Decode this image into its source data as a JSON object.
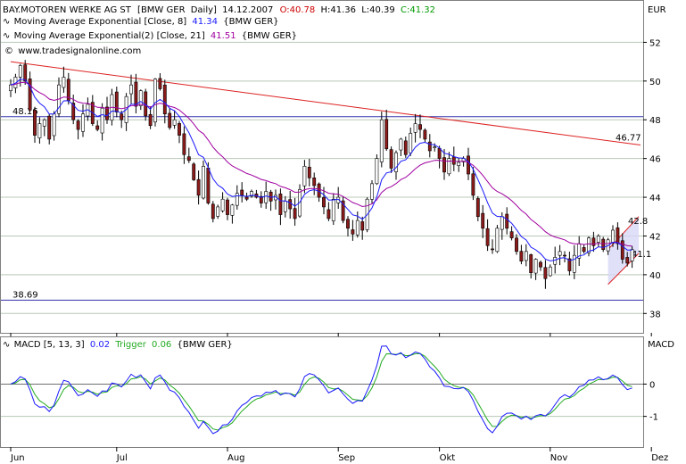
{
  "header": {
    "symbol": "BAY.MOTOREN WERKE AG ST",
    "exchange": "[BMW GER",
    "period": "Daily]",
    "date": "14.12.2007",
    "open_label": "O:",
    "open": "40.78",
    "high_label": "H:",
    "high": "41.36",
    "low_label": "L:",
    "low": "40.39",
    "close_label": "C:",
    "close": "41.32"
  },
  "legend": {
    "ema1_label": "Moving Average Exponential [Close, 8]",
    "ema1_value": "41.34",
    "ema1_source": "{BMW GER}",
    "ema2_label": "Moving Average Exponential(2) [Close, 21]",
    "ema2_value": "41.51",
    "ema2_source": "{BMW GER}",
    "watermark": "www.tradesignalonline.com"
  },
  "macd_legend": {
    "label": "MACD [5, 13, 3]",
    "value": "0.02",
    "trigger_label": "Trigger",
    "trigger_value": "0.06",
    "source": "{BMW GER}"
  },
  "colors": {
    "up_candle": "#ffffff",
    "down_candle": "#8b1a1a",
    "ema8": "#1a1aff",
    "ema21": "#a000a0",
    "trendline": "#dd2222",
    "channel_fill": "#d8d8f8",
    "hline": "#3333aa",
    "macd": "#1a1aff",
    "trigger": "#22aa22",
    "header_red": "#cc0000",
    "header_green": "#009900",
    "background": "#ffffff"
  },
  "chart_data": [
    {
      "type": "candlestick",
      "currency_label": "EUR",
      "ylim": [
        37,
        54
      ],
      "y_ticks": [
        38,
        40,
        42,
        44,
        46,
        48,
        50,
        52
      ],
      "x_labels": [
        "Jun",
        "Jul",
        "Aug",
        "Sep",
        "Okt",
        "Nov",
        "Dez"
      ],
      "x_label_index": [
        0,
        22,
        45,
        68,
        89,
        112,
        133
      ],
      "horizontal_lines": [
        {
          "label": "48.16",
          "value": 48.16
        },
        {
          "label": "38.69",
          "value": 38.69
        }
      ],
      "trendline": {
        "label": "46.77",
        "start_index": 0,
        "start_value": 51.0,
        "end_index": 145,
        "end_value": 46.7
      },
      "channel": {
        "label_upper": "42.8",
        "label_lower": "41.1",
        "start_index": 124,
        "end_index": 145,
        "lower_start": 39.5,
        "lower_end": 41.1,
        "upper_start": 41.3,
        "upper_end": 43.0
      },
      "closes": [
        49.8,
        50.2,
        50.8,
        50.0,
        48.5,
        47.2,
        47.8,
        48.0,
        47.0,
        48.3,
        49.8,
        50.2,
        49.0,
        48.0,
        47.5,
        48.3,
        48.8,
        47.8,
        47.5,
        48.6,
        48.0,
        49.3,
        48.4,
        48.0,
        49.2,
        49.8,
        48.7,
        49.5,
        48.2,
        47.7,
        50.1,
        49.6,
        48.3,
        47.6,
        48.0,
        47.2,
        46.2,
        45.9,
        44.9,
        44.1,
        45.6,
        43.7,
        42.9,
        43.5,
        43.9,
        43.1,
        43.6,
        44.2,
        44.1,
        43.9,
        44.3,
        44.0,
        43.7,
        44.3,
        43.8,
        44.1,
        43.1,
        43.8,
        43.4,
        42.9,
        44.4,
        45.6,
        45.0,
        44.6,
        44.0,
        43.5,
        42.9,
        43.9,
        44.0,
        42.8,
        42.4,
        42.1,
        42.8,
        42.3,
        43.9,
        44.7,
        46.0,
        48.0,
        46.5,
        45.5,
        46.3,
        47.0,
        46.2,
        47.3,
        47.8,
        47.5,
        47.0,
        46.4,
        46.6,
        46.0,
        45.3,
        46.0,
        45.7,
        45.8,
        46.0,
        45.2,
        44.1,
        43.0,
        42.4,
        41.5,
        41.3,
        42.4,
        43.0,
        42.4,
        41.9,
        41.2,
        40.7,
        41.2,
        40.1,
        40.8,
        40.4,
        39.8,
        40.4,
        40.9,
        41.2,
        41.0,
        40.2,
        41.0,
        41.6,
        41.2,
        41.9,
        41.5,
        42.0,
        41.3,
        41.8,
        42.3,
        41.6,
        40.8,
        40.6,
        41.3
      ],
      "ema8_reference": "computed",
      "ema21_reference": "computed"
    },
    {
      "type": "line",
      "name": "MACD",
      "ylabel": "MACD",
      "ylim": [
        -1.95,
        1.45
      ],
      "y_ticks": [
        -1,
        0
      ],
      "series": [
        {
          "name": "MACD [5, 13, 3]",
          "ref": "macd"
        },
        {
          "name": "Trigger",
          "ref": "trigger"
        }
      ]
    }
  ]
}
